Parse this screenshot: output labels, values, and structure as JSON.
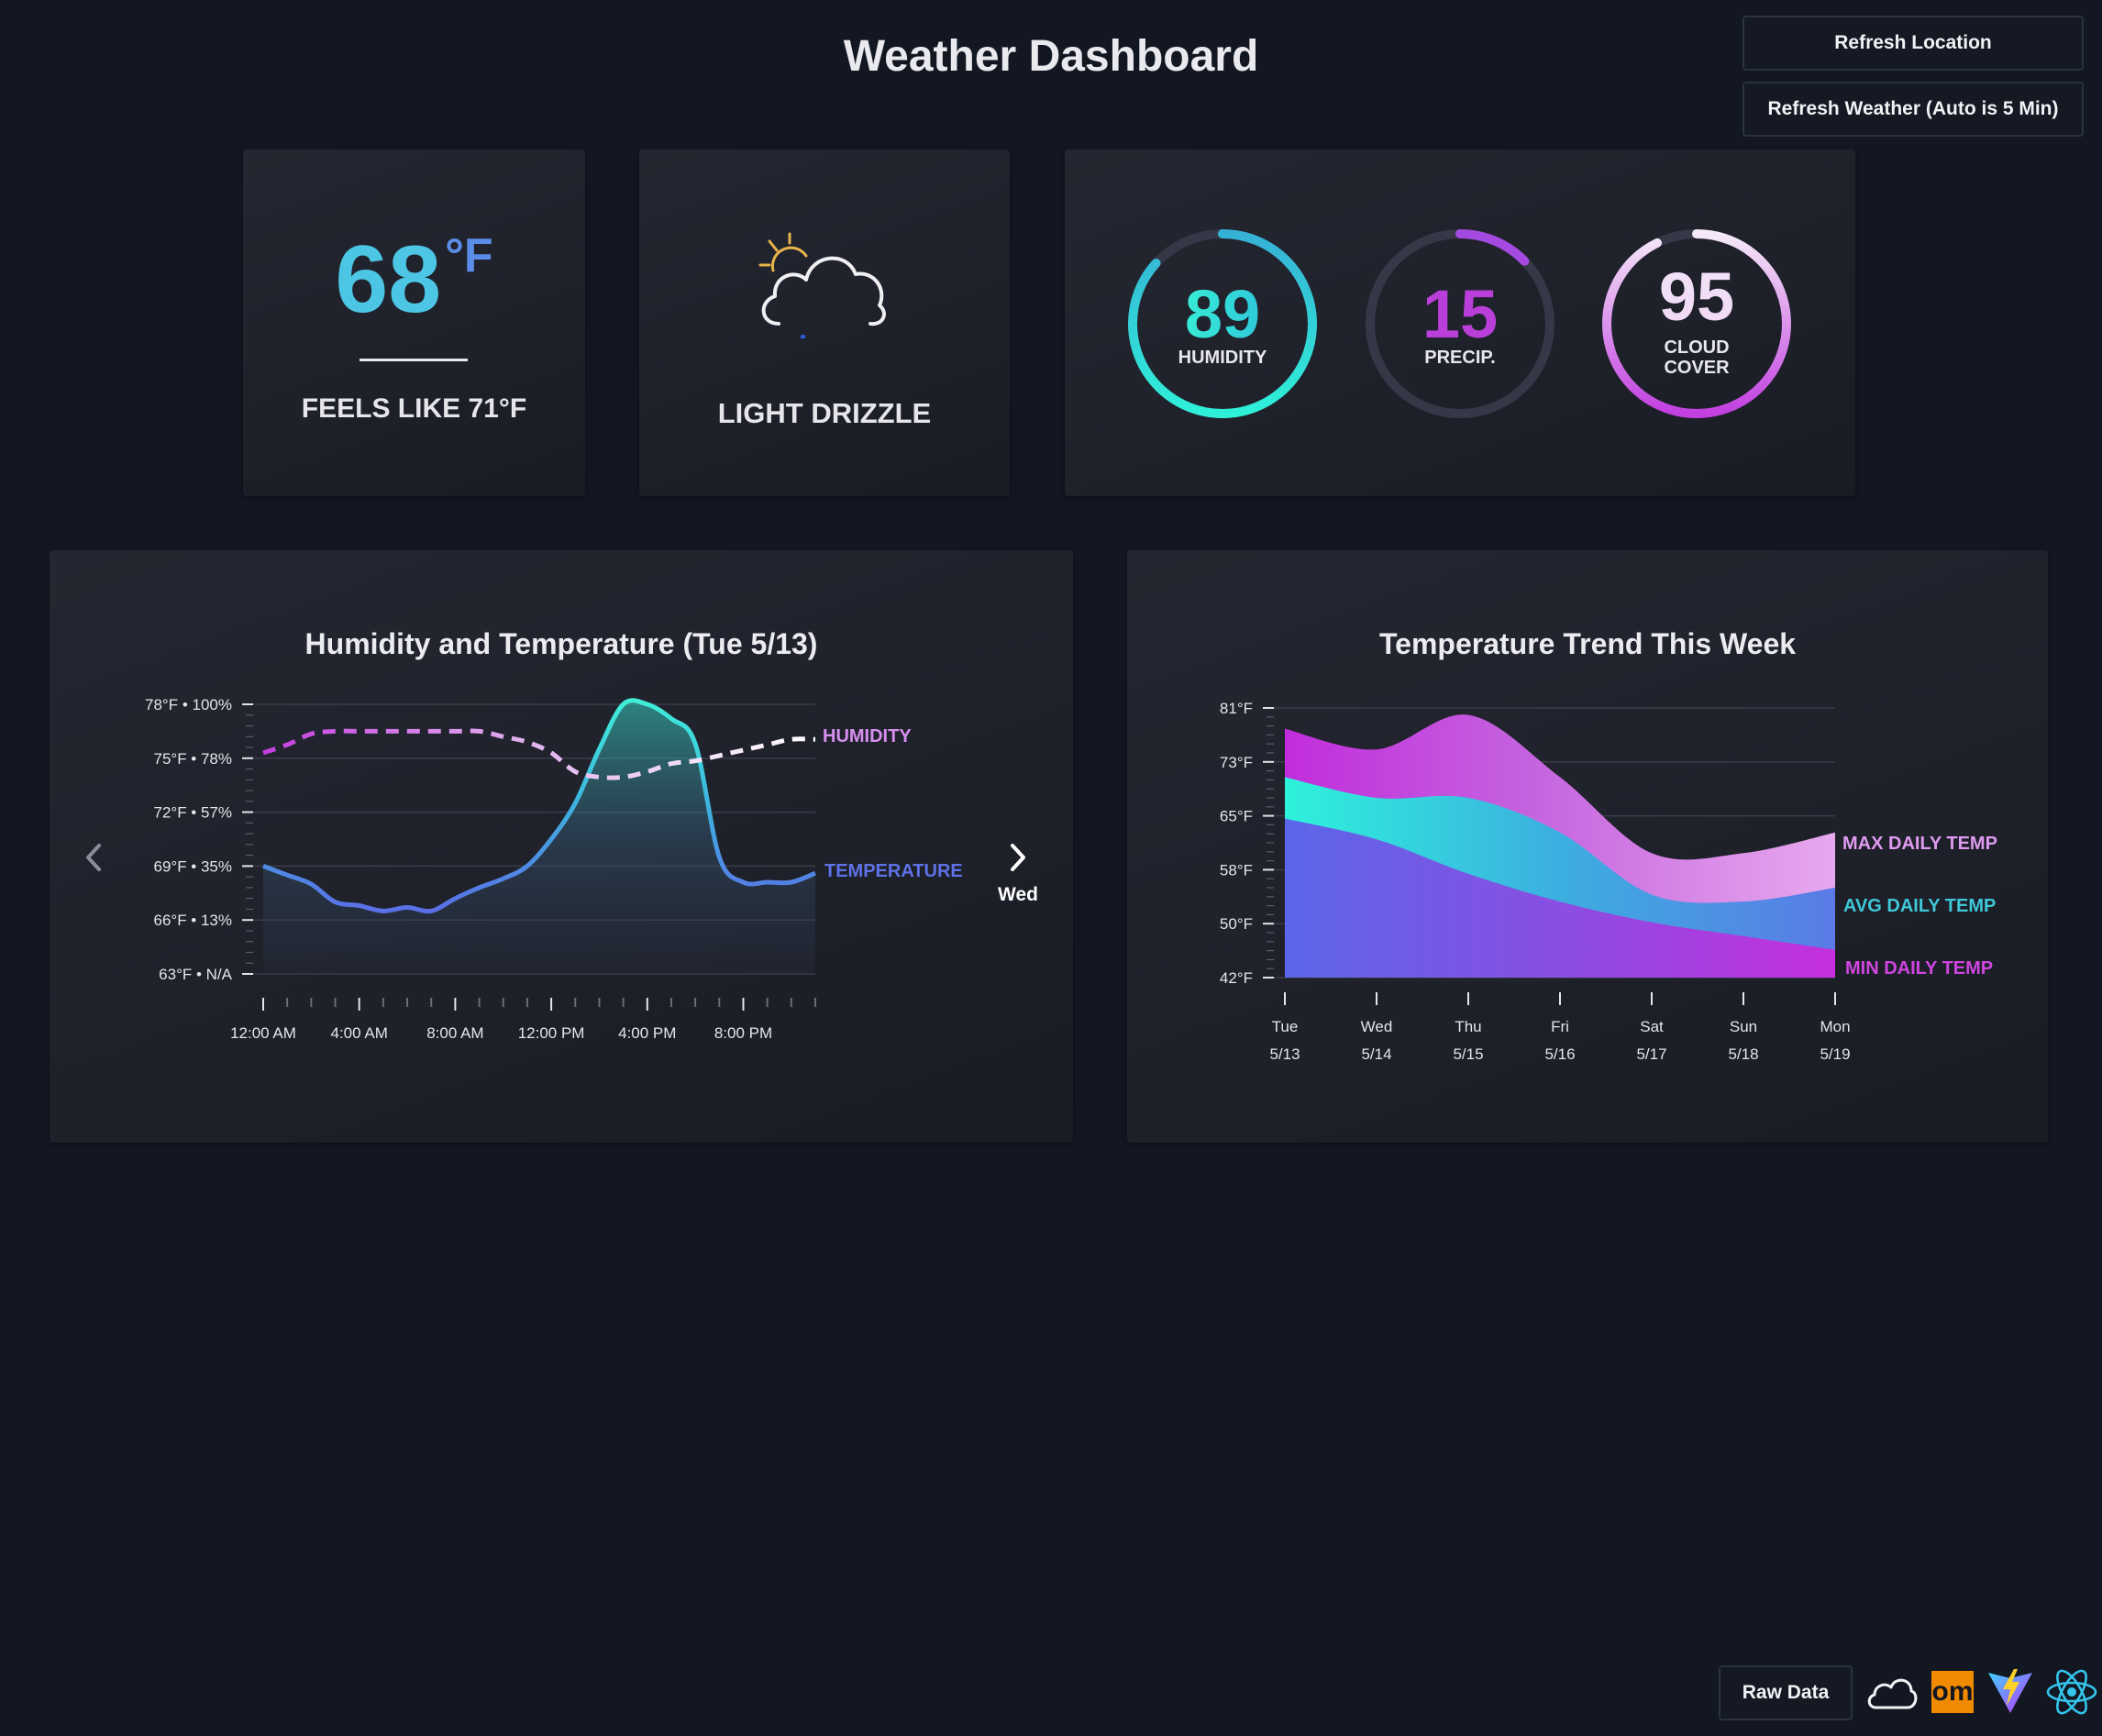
{
  "header": {
    "title": "Weather Dashboard"
  },
  "buttons": {
    "refresh_location": "Refresh Location",
    "refresh_weather": "Refresh Weather (Auto is 5 Min)",
    "raw_data": "Raw Data"
  },
  "current": {
    "temp_value": "68",
    "temp_unit": "°F",
    "feels_like": "FEELS LIKE 71°F",
    "condition": "LIGHT DRIZZLE",
    "icon": "cloud-drizzle-sun-icon"
  },
  "gauges": [
    {
      "value": "89",
      "fraction": 0.89,
      "label_lines": [
        "HUMIDITY"
      ]
    },
    {
      "value": "15",
      "fraction": 0.15,
      "label_lines": [
        "PRECIP."
      ]
    },
    {
      "value": "95",
      "fraction": 0.95,
      "label_lines": [
        "CLOUD",
        "COVER"
      ]
    }
  ],
  "colors": {
    "background": "#121722",
    "humidity_gauge": "#2fe0d3",
    "precip_gauge": "#b341d8",
    "cloud_gauge": "#c94be2",
    "temperature_line": "#5b74e6",
    "temperature_peak": "#3fe4d8",
    "humidity_line": "#c14edc",
    "max_daily": "#cd47e0",
    "avg_daily": "#38c9d8",
    "min_daily": "#6a63e6"
  },
  "charts": {
    "hourly": {
      "title": "Humidity and Temperature (Tue 5/13)",
      "next_day": "Wed",
      "humidity_label": "HUMIDITY",
      "temperature_label": "TEMPERATURE",
      "y_ticks": [
        "78°F • 100%",
        "75°F • 78%",
        "72°F • 57%",
        "69°F • 35%",
        "66°F • 13%",
        "63°F • N/A"
      ],
      "x_ticks": [
        "12:00 AM",
        "4:00 AM",
        "8:00 AM",
        "12:00 PM",
        "4:00 PM",
        "8:00 PM"
      ]
    },
    "weekly": {
      "title": "Temperature Trend This Week",
      "y_ticks": [
        "81°F",
        "73°F",
        "65°F",
        "58°F",
        "50°F",
        "42°F"
      ],
      "days": [
        "Tue",
        "Wed",
        "Thu",
        "Fri",
        "Sat",
        "Sun",
        "Mon"
      ],
      "dates": [
        "5/13",
        "5/14",
        "5/15",
        "5/16",
        "5/17",
        "5/18",
        "5/19"
      ],
      "max_label": "MAX DAILY TEMP",
      "avg_label": "AVG DAILY TEMP",
      "min_label": "MIN DAILY TEMP"
    }
  },
  "chart_data": [
    {
      "type": "line",
      "title": "Humidity and Temperature (Tue 5/13)",
      "x": [
        0,
        1,
        2,
        3,
        4,
        5,
        6,
        7,
        8,
        9,
        10,
        11,
        12,
        13,
        14,
        15,
        16,
        17,
        18,
        19,
        20,
        21,
        22,
        23
      ],
      "x_tick_labels": [
        "12:00 AM",
        "4:00 AM",
        "8:00 AM",
        "12:00 PM",
        "4:00 PM",
        "8:00 PM"
      ],
      "series": [
        {
          "name": "TEMPERATURE",
          "unit": "°F",
          "values": [
            69,
            68.5,
            68,
            67,
            66.8,
            66.5,
            66.7,
            66.5,
            67.2,
            67.8,
            68.3,
            69,
            70.5,
            72.5,
            75.5,
            78,
            78,
            77.2,
            75.8,
            69.5,
            68.1,
            68.1,
            68.1,
            68.6
          ]
        },
        {
          "name": "HUMIDITY",
          "unit": "%",
          "values": [
            82,
            85,
            89,
            90,
            90,
            90,
            90,
            90,
            90,
            90,
            88,
            86,
            82,
            75,
            73,
            73,
            75,
            78,
            79,
            81,
            83,
            85,
            87,
            87
          ]
        }
      ],
      "ylim_temperature": [
        63,
        78
      ],
      "ylim_humidity": [
        0,
        100
      ]
    },
    {
      "type": "area",
      "title": "Temperature Trend This Week",
      "categories": [
        "Tue 5/13",
        "Wed 5/14",
        "Thu 5/15",
        "Fri 5/16",
        "Sat 5/17",
        "Sun 5/18",
        "Mon 5/19"
      ],
      "series": [
        {
          "name": "MAX DAILY TEMP",
          "values": [
            78,
            75,
            80,
            71,
            60,
            60,
            63
          ]
        },
        {
          "name": "AVG DAILY TEMP",
          "values": [
            71,
            68,
            68,
            63,
            54,
            53,
            55
          ]
        },
        {
          "name": "MIN DAILY TEMP",
          "values": [
            65,
            62,
            57,
            53,
            50,
            48,
            46
          ]
        }
      ],
      "ylim": [
        42,
        81
      ],
      "y_tick_labels": [
        "81°F",
        "73°F",
        "65°F",
        "58°F",
        "50°F",
        "42°F"
      ]
    }
  ]
}
